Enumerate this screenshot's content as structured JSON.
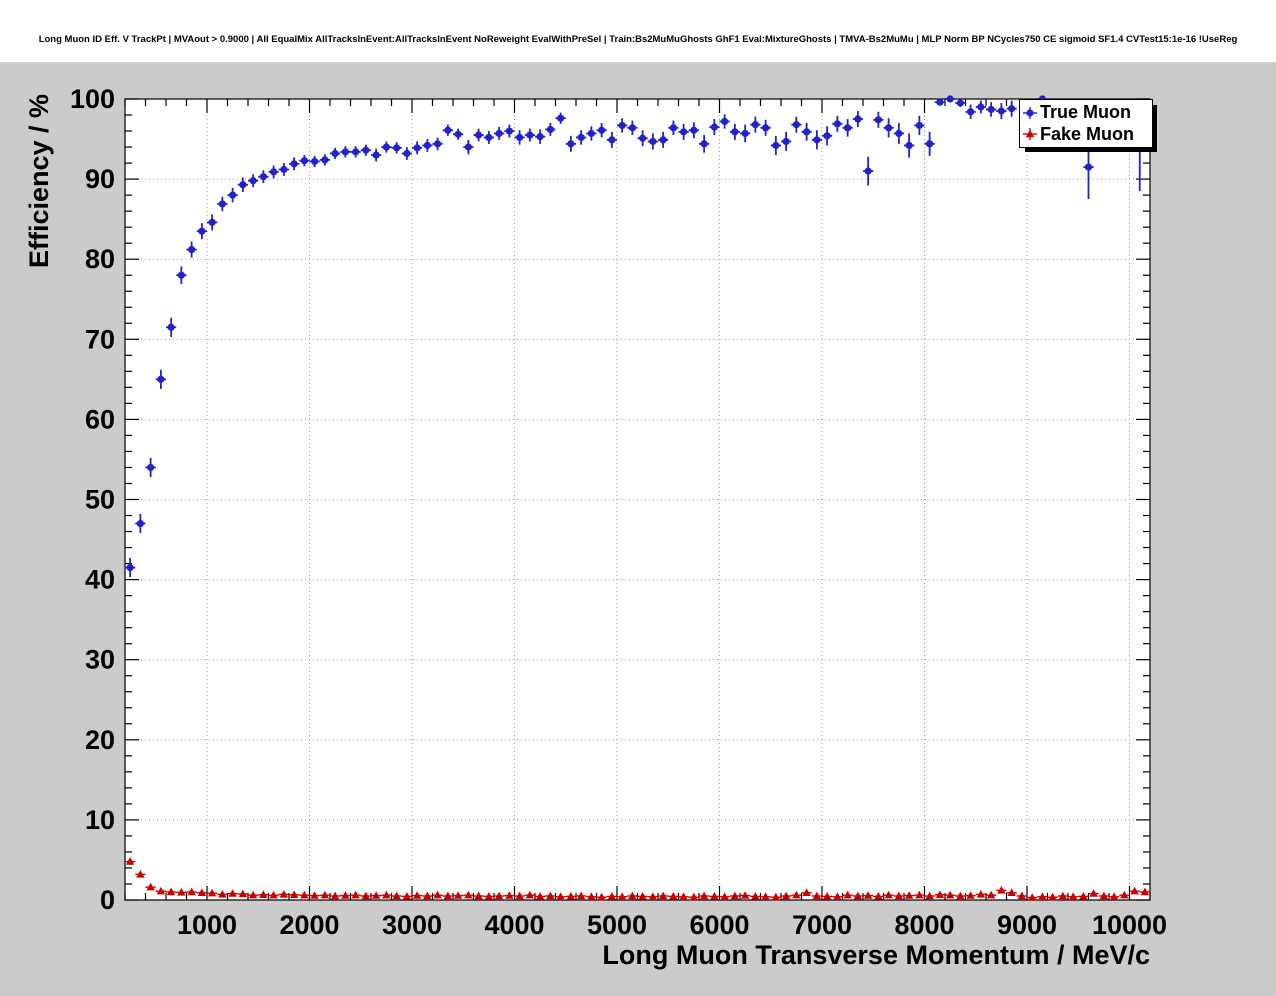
{
  "title": "Long Muon ID Eff. V TrackPt | MVAout > 0.9000 | All EqualMix AllTracksInEvent:AllTracksInEvent NoReweight EvalWithPreSel | Train:Bs2MuMuGhosts GhF1 Eval:MixtureGhosts | TMVA-Bs2MuMu | MLP Norm BP NCycles750 CE sigmoid SF1.4 CVTest15:1e-16 !UseReg",
  "colors": {
    "canvas_background": "#cbcbcb",
    "header_background": "#ffffff",
    "plot_background": "#ffffff",
    "grid": "#999999",
    "frame": "#000000",
    "true_muon": "#2222cc",
    "fake_muon": "#cc0000"
  },
  "chart_data": {
    "type": "scatter",
    "title": "Long Muon ID Eff. V TrackPt | MVAout > 0.9000 | All EqualMix AllTracksInEvent:AllTracksInEvent NoReweight EvalWithPreSel | Train:Bs2MuMuGhosts GhF1 Eval:MixtureGhosts | TMVA-Bs2MuMu | MLP Norm BP NCycles750 CE sigmoid SF1.4 CVTest15:1e-16 !UseReg",
    "xlabel": "Long Muon Transverse Momentum / MeV/c",
    "ylabel": "Efficiency / %",
    "xlim": [
      200,
      10200
    ],
    "ylim": [
      0,
      100
    ],
    "x_major_ticks": [
      1000,
      2000,
      3000,
      4000,
      5000,
      6000,
      7000,
      8000,
      9000,
      10000
    ],
    "x_minor_step": 200,
    "y_major_step": 10,
    "y_minor_step": 2,
    "grid": true,
    "bin_half_width": 50,
    "legend": {
      "position": "top-right",
      "entries": [
        {
          "label": "True Muon",
          "marker": "circle",
          "color": "#2222cc"
        },
        {
          "label": "Fake Muon",
          "marker": "triangle",
          "color": "#cc0000"
        }
      ]
    },
    "series": [
      {
        "name": "True Muon",
        "marker": "circle",
        "color": "#2222cc",
        "points": [
          [
            250,
            41.5,
            1.2
          ],
          [
            350,
            47.0,
            1.2
          ],
          [
            450,
            54.0,
            1.2
          ],
          [
            550,
            65.0,
            1.2
          ],
          [
            650,
            71.5,
            1.2
          ],
          [
            750,
            78.0,
            1.1
          ],
          [
            850,
            81.2,
            1.0
          ],
          [
            950,
            83.5,
            1.0
          ],
          [
            1050,
            84.6,
            1.0
          ],
          [
            1150,
            86.9,
            0.9
          ],
          [
            1250,
            88.0,
            0.9
          ],
          [
            1350,
            89.3,
            0.9
          ],
          [
            1450,
            89.8,
            0.8
          ],
          [
            1550,
            90.3,
            0.8
          ],
          [
            1650,
            90.9,
            0.8
          ],
          [
            1750,
            91.2,
            0.8
          ],
          [
            1850,
            91.9,
            0.8
          ],
          [
            1950,
            92.3,
            0.7
          ],
          [
            2050,
            92.2,
            0.7
          ],
          [
            2150,
            92.4,
            0.7
          ],
          [
            2250,
            93.2,
            0.7
          ],
          [
            2350,
            93.4,
            0.7
          ],
          [
            2450,
            93.4,
            0.7
          ],
          [
            2550,
            93.6,
            0.7
          ],
          [
            2650,
            93.0,
            0.8
          ],
          [
            2750,
            94.0,
            0.7
          ],
          [
            2850,
            93.9,
            0.7
          ],
          [
            2950,
            93.2,
            0.8
          ],
          [
            3050,
            93.9,
            0.8
          ],
          [
            3150,
            94.2,
            0.8
          ],
          [
            3250,
            94.4,
            0.8
          ],
          [
            3350,
            96.1,
            0.7
          ],
          [
            3450,
            95.6,
            0.7
          ],
          [
            3550,
            94.0,
            0.9
          ],
          [
            3650,
            95.5,
            0.8
          ],
          [
            3750,
            95.2,
            0.8
          ],
          [
            3850,
            95.7,
            0.8
          ],
          [
            3950,
            96.0,
            0.8
          ],
          [
            4050,
            95.2,
            0.9
          ],
          [
            4150,
            95.5,
            0.8
          ],
          [
            4250,
            95.3,
            0.9
          ],
          [
            4350,
            96.2,
            0.8
          ],
          [
            4450,
            97.6,
            0.7
          ],
          [
            4550,
            94.4,
            1.0
          ],
          [
            4650,
            95.2,
            0.9
          ],
          [
            4750,
            95.7,
            0.9
          ],
          [
            4850,
            96.1,
            0.9
          ],
          [
            4950,
            94.9,
            1.0
          ],
          [
            5050,
            96.7,
            0.9
          ],
          [
            5150,
            96.4,
            0.9
          ],
          [
            5250,
            95.1,
            1.0
          ],
          [
            5350,
            94.7,
            1.0
          ],
          [
            5450,
            94.9,
            1.0
          ],
          [
            5550,
            96.4,
            0.9
          ],
          [
            5650,
            95.9,
            1.0
          ],
          [
            5750,
            96.1,
            1.0
          ],
          [
            5850,
            94.4,
            1.1
          ],
          [
            5950,
            96.5,
            1.0
          ],
          [
            6050,
            97.2,
            0.9
          ],
          [
            6150,
            95.9,
            1.0
          ],
          [
            6250,
            95.7,
            1.1
          ],
          [
            6350,
            96.8,
            1.0
          ],
          [
            6450,
            96.4,
            1.0
          ],
          [
            6550,
            94.2,
            1.2
          ],
          [
            6650,
            94.7,
            1.2
          ],
          [
            6750,
            96.8,
            1.0
          ],
          [
            6850,
            95.9,
            1.1
          ],
          [
            6950,
            94.9,
            1.2
          ],
          [
            7050,
            95.4,
            1.2
          ],
          [
            7150,
            96.9,
            1.0
          ],
          [
            7250,
            96.4,
            1.1
          ],
          [
            7350,
            97.5,
            1.0
          ],
          [
            7450,
            91.0,
            1.8
          ],
          [
            7550,
            97.4,
            1.0
          ],
          [
            7650,
            96.4,
            1.2
          ],
          [
            7750,
            95.7,
            1.3
          ],
          [
            7850,
            94.2,
            1.5
          ],
          [
            7950,
            96.7,
            1.2
          ],
          [
            8050,
            94.4,
            1.5
          ],
          [
            8150,
            99.6,
            0.4
          ],
          [
            8250,
            100.0,
            0.3
          ],
          [
            8350,
            99.5,
            0.5
          ],
          [
            8450,
            98.4,
            0.9
          ],
          [
            8550,
            99.0,
            0.8
          ],
          [
            8650,
            98.7,
            0.9
          ],
          [
            8750,
            98.5,
            1.0
          ],
          [
            8850,
            98.8,
            1.0
          ],
          [
            9150,
            100.0,
            0.8
          ],
          [
            9600,
            91.5,
            4.0
          ],
          [
            10100,
            95.0,
            6.5
          ]
        ]
      },
      {
        "name": "Fake Muon",
        "marker": "triangle",
        "color": "#cc0000",
        "points": [
          [
            250,
            4.8,
            0.4
          ],
          [
            350,
            3.2,
            0.3
          ],
          [
            450,
            1.6,
            0.25
          ],
          [
            550,
            1.1,
            0.2
          ],
          [
            650,
            1.0,
            0.2
          ],
          [
            750,
            0.95,
            0.18
          ],
          [
            850,
            1.0,
            0.18
          ],
          [
            950,
            0.9,
            0.17
          ],
          [
            1050,
            0.85,
            0.16
          ],
          [
            1150,
            0.7,
            0.15
          ],
          [
            1250,
            0.8,
            0.15
          ],
          [
            1350,
            0.75,
            0.15
          ],
          [
            1450,
            0.6,
            0.14
          ],
          [
            1550,
            0.65,
            0.14
          ],
          [
            1650,
            0.6,
            0.14
          ],
          [
            1750,
            0.7,
            0.14
          ],
          [
            1850,
            0.65,
            0.13
          ],
          [
            1950,
            0.6,
            0.13
          ],
          [
            2050,
            0.55,
            0.13
          ],
          [
            2150,
            0.6,
            0.13
          ],
          [
            2250,
            0.5,
            0.12
          ],
          [
            2350,
            0.55,
            0.12
          ],
          [
            2450,
            0.6,
            0.12
          ],
          [
            2550,
            0.5,
            0.12
          ],
          [
            2650,
            0.55,
            0.12
          ],
          [
            2750,
            0.6,
            0.12
          ],
          [
            2850,
            0.5,
            0.12
          ],
          [
            2950,
            0.45,
            0.12
          ],
          [
            3050,
            0.55,
            0.12
          ],
          [
            3150,
            0.5,
            0.12
          ],
          [
            3250,
            0.6,
            0.12
          ],
          [
            3350,
            0.5,
            0.12
          ],
          [
            3450,
            0.55,
            0.12
          ],
          [
            3550,
            0.6,
            0.13
          ],
          [
            3650,
            0.5,
            0.12
          ],
          [
            3750,
            0.45,
            0.12
          ],
          [
            3850,
            0.5,
            0.12
          ],
          [
            3950,
            0.55,
            0.12
          ],
          [
            4050,
            0.5,
            0.12
          ],
          [
            4150,
            0.6,
            0.13
          ],
          [
            4250,
            0.45,
            0.12
          ],
          [
            4350,
            0.5,
            0.12
          ],
          [
            4450,
            0.4,
            0.11
          ],
          [
            4550,
            0.45,
            0.12
          ],
          [
            4650,
            0.5,
            0.12
          ],
          [
            4750,
            0.4,
            0.11
          ],
          [
            4850,
            0.35,
            0.11
          ],
          [
            4950,
            0.45,
            0.12
          ],
          [
            5050,
            0.4,
            0.11
          ],
          [
            5150,
            0.5,
            0.12
          ],
          [
            5250,
            0.45,
            0.12
          ],
          [
            5350,
            0.4,
            0.12
          ],
          [
            5450,
            0.5,
            0.12
          ],
          [
            5550,
            0.45,
            0.12
          ],
          [
            5650,
            0.4,
            0.12
          ],
          [
            5750,
            0.35,
            0.11
          ],
          [
            5850,
            0.5,
            0.13
          ],
          [
            5950,
            0.45,
            0.12
          ],
          [
            6050,
            0.4,
            0.12
          ],
          [
            6150,
            0.5,
            0.13
          ],
          [
            6250,
            0.55,
            0.13
          ],
          [
            6350,
            0.45,
            0.12
          ],
          [
            6450,
            0.4,
            0.12
          ],
          [
            6550,
            0.35,
            0.12
          ],
          [
            6650,
            0.5,
            0.13
          ],
          [
            6750,
            0.6,
            0.14
          ],
          [
            6850,
            0.9,
            0.17
          ],
          [
            6950,
            0.5,
            0.13
          ],
          [
            7050,
            0.45,
            0.13
          ],
          [
            7150,
            0.4,
            0.13
          ],
          [
            7250,
            0.6,
            0.15
          ],
          [
            7350,
            0.5,
            0.14
          ],
          [
            7450,
            0.55,
            0.15
          ],
          [
            7550,
            0.45,
            0.14
          ],
          [
            7650,
            0.6,
            0.15
          ],
          [
            7750,
            0.5,
            0.15
          ],
          [
            7850,
            0.55,
            0.15
          ],
          [
            7950,
            0.6,
            0.16
          ],
          [
            8050,
            0.5,
            0.15
          ],
          [
            8150,
            0.65,
            0.17
          ],
          [
            8250,
            0.6,
            0.16
          ],
          [
            8350,
            0.5,
            0.16
          ],
          [
            8450,
            0.55,
            0.16
          ],
          [
            8550,
            0.7,
            0.18
          ],
          [
            8650,
            0.6,
            0.17
          ],
          [
            8750,
            1.2,
            0.25
          ],
          [
            8850,
            0.9,
            0.2
          ],
          [
            8950,
            0.5,
            0.16
          ],
          [
            9050,
            0.3,
            0.14
          ],
          [
            9150,
            0.4,
            0.15
          ],
          [
            9250,
            0.35,
            0.15
          ],
          [
            9350,
            0.5,
            0.17
          ],
          [
            9450,
            0.4,
            0.16
          ],
          [
            9550,
            0.45,
            0.17
          ],
          [
            9650,
            0.8,
            0.22
          ],
          [
            9750,
            0.5,
            0.18
          ],
          [
            9850,
            0.4,
            0.17
          ],
          [
            9950,
            0.6,
            0.2
          ],
          [
            10050,
            1.1,
            0.28
          ],
          [
            10150,
            1.0,
            0.26
          ]
        ]
      }
    ]
  }
}
